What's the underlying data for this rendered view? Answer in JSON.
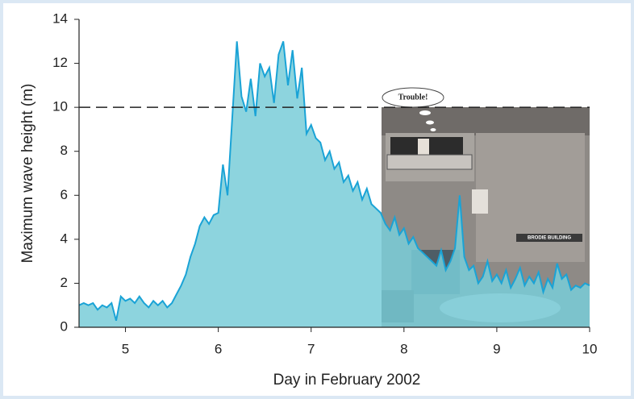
{
  "chart_data": {
    "type": "area",
    "xlabel": "Day in February 2002",
    "ylabel": "Maximum wave height (m)",
    "xlim": [
      4.5,
      10
    ],
    "xticks": [
      5,
      6,
      7,
      8,
      9,
      10
    ],
    "ylim": [
      0,
      14
    ],
    "yticks": [
      0,
      2,
      4,
      6,
      8,
      10,
      12,
      14
    ],
    "reference_line": 10,
    "annotations": [
      "Trouble!",
      "BRODIE BUILDING"
    ],
    "color": "#1aa3d6",
    "fill": "#79cdd8",
    "x": [
      4.5,
      4.55,
      4.6,
      4.65,
      4.7,
      4.75,
      4.8,
      4.85,
      4.9,
      4.95,
      5,
      5.05,
      5.1,
      5.15,
      5.2,
      5.25,
      5.3,
      5.35,
      5.4,
      5.45,
      5.5,
      5.55,
      5.6,
      5.65,
      5.7,
      5.75,
      5.8,
      5.85,
      5.9,
      5.95,
      6,
      6.05,
      6.1,
      6.15,
      6.2,
      6.25,
      6.3,
      6.35,
      6.4,
      6.45,
      6.5,
      6.55,
      6.6,
      6.65,
      6.7,
      6.75,
      6.8,
      6.85,
      6.9,
      6.95,
      7,
      7.05,
      7.1,
      7.15,
      7.2,
      7.25,
      7.3,
      7.35,
      7.4,
      7.45,
      7.5,
      7.55,
      7.6,
      7.65,
      7.7,
      7.75,
      7.8,
      7.85,
      7.9,
      7.95,
      8,
      8.05,
      8.1,
      8.15,
      8.2,
      8.25,
      8.3,
      8.35,
      8.4,
      8.45,
      8.5,
      8.55,
      8.6,
      8.65,
      8.7,
      8.75,
      8.8,
      8.85,
      8.9,
      8.95,
      9,
      9.05,
      9.1,
      9.15,
      9.2,
      9.25,
      9.3,
      9.35,
      9.4,
      9.45,
      9.5,
      9.55,
      9.6,
      9.65,
      9.7,
      9.75,
      9.8,
      9.85,
      9.9,
      9.95,
      10
    ],
    "values": [
      1.0,
      1.1,
      1.0,
      1.1,
      0.8,
      1.0,
      0.9,
      1.1,
      0.3,
      1.4,
      1.2,
      1.3,
      1.1,
      1.4,
      1.1,
      0.9,
      1.2,
      1.0,
      1.2,
      0.9,
      1.1,
      1.5,
      1.9,
      2.4,
      3.2,
      3.8,
      4.6,
      5.0,
      4.7,
      5.1,
      5.2,
      7.4,
      6.0,
      9.5,
      13.0,
      10.5,
      9.8,
      11.3,
      9.6,
      12.0,
      11.4,
      11.8,
      10.2,
      12.4,
      13.0,
      11.0,
      12.6,
      10.4,
      11.8,
      8.8,
      9.2,
      8.6,
      8.4,
      7.6,
      8.0,
      7.2,
      7.5,
      6.6,
      6.9,
      6.2,
      6.6,
      5.8,
      6.3,
      5.6,
      5.4,
      5.2,
      4.7,
      4.4,
      5.0,
      4.2,
      4.5,
      3.8,
      4.1,
      3.6,
      3.4,
      3.2,
      3.0,
      2.8,
      3.5,
      2.6,
      3.0,
      3.6,
      6.0,
      3.2,
      2.6,
      2.8,
      2.0,
      2.3,
      3.0,
      2.1,
      2.4,
      2.0,
      2.6,
      1.8,
      2.2,
      2.7,
      1.9,
      2.3,
      2.0,
      2.5,
      1.6,
      2.2,
      1.8,
      2.9,
      2.2,
      2.4,
      1.7,
      1.9,
      1.8,
      2.0,
      1.9
    ]
  }
}
